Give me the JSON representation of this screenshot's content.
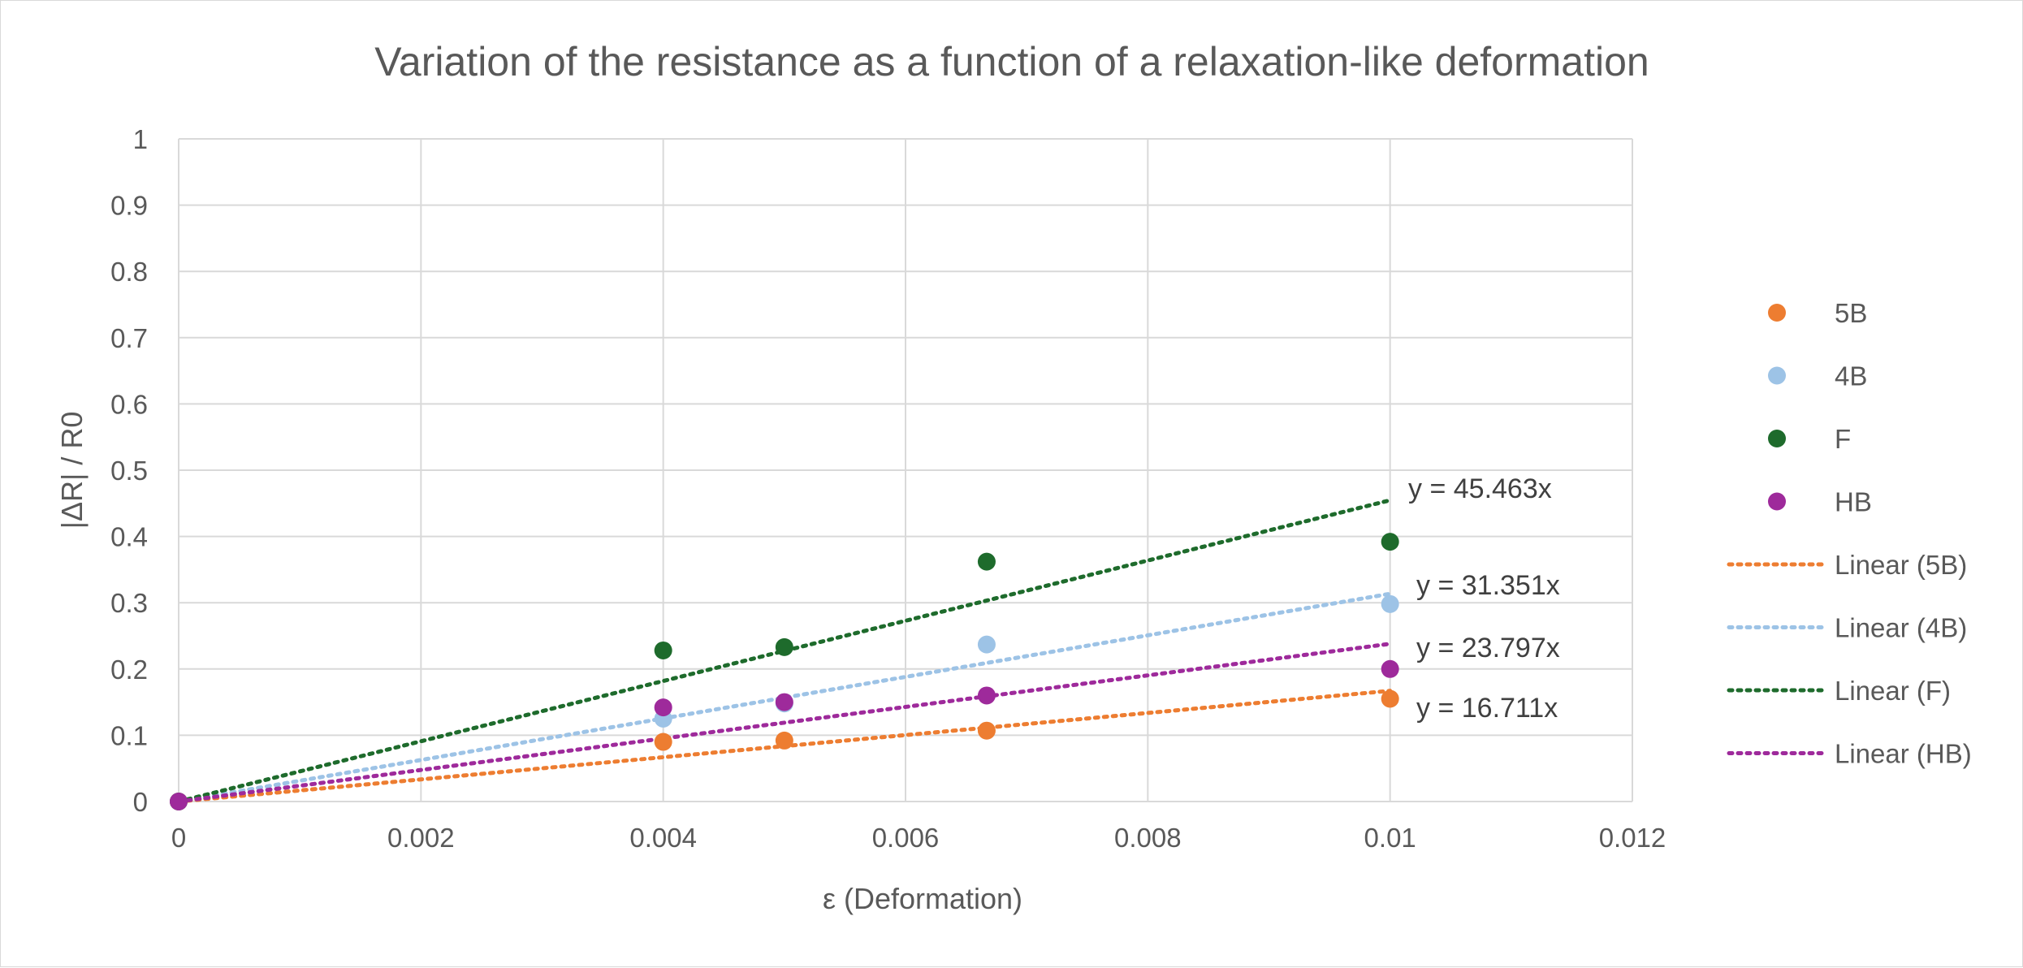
{
  "chart_data": {
    "type": "scatter",
    "title": "Variation of the resistance as a function of a relaxation-like deformation",
    "xlabel": "ε  (Deformation)",
    "ylabel": "|ΔR| / R0",
    "xlim": [
      0,
      0.012
    ],
    "ylim": [
      0,
      1
    ],
    "x_ticks": [
      "0",
      "0.002",
      "0.004",
      "0.006",
      "0.008",
      "0.01",
      "0.012"
    ],
    "y_ticks": [
      "0",
      "0.1",
      "0.2",
      "0.3",
      "0.4",
      "0.5",
      "0.6",
      "0.7",
      "0.8",
      "0.9",
      "1"
    ],
    "grid": true,
    "legend_position": "right",
    "series": [
      {
        "name": "5B",
        "color": "#ED7D31",
        "points": [
          [
            0,
            0
          ],
          [
            0.004,
            0.09
          ],
          [
            0.005,
            0.092
          ],
          [
            0.00667,
            0.107
          ],
          [
            0.01,
            0.155
          ]
        ]
      },
      {
        "name": "4B",
        "color": "#9DC3E6",
        "points": [
          [
            0,
            0
          ],
          [
            0.004,
            0.125
          ],
          [
            0.005,
            0.148
          ],
          [
            0.00667,
            0.237
          ],
          [
            0.01,
            0.298
          ]
        ]
      },
      {
        "name": "F",
        "color": "#1E6B2C",
        "points": [
          [
            0,
            0
          ],
          [
            0.004,
            0.228
          ],
          [
            0.005,
            0.233
          ],
          [
            0.00667,
            0.362
          ],
          [
            0.01,
            0.392
          ]
        ]
      },
      {
        "name": "HB",
        "color": "#9E2A9B",
        "points": [
          [
            0,
            0
          ],
          [
            0.004,
            0.142
          ],
          [
            0.005,
            0.15
          ],
          [
            0.00667,
            0.16
          ],
          [
            0.01,
            0.2
          ]
        ]
      }
    ],
    "trendlines": [
      {
        "name": "Linear (5B)",
        "series": "5B",
        "color": "#ED7D31",
        "slope": 16.711,
        "x_range": [
          0,
          0.01
        ],
        "equation": "y = 16.711x"
      },
      {
        "name": "Linear (4B)",
        "series": "4B",
        "color": "#9DC3E6",
        "slope": 31.351,
        "x_range": [
          0,
          0.01
        ],
        "equation": "y = 31.351x"
      },
      {
        "name": "Linear (F)",
        "series": "F",
        "color": "#1E6B2C",
        "slope": 45.463,
        "x_range": [
          0,
          0.01
        ],
        "equation": "y = 45.463x"
      },
      {
        "name": "Linear (HB)",
        "series": "HB",
        "color": "#9E2A9B",
        "slope": 23.797,
        "x_range": [
          0,
          0.01
        ],
        "equation": "y = 23.797x"
      }
    ]
  }
}
